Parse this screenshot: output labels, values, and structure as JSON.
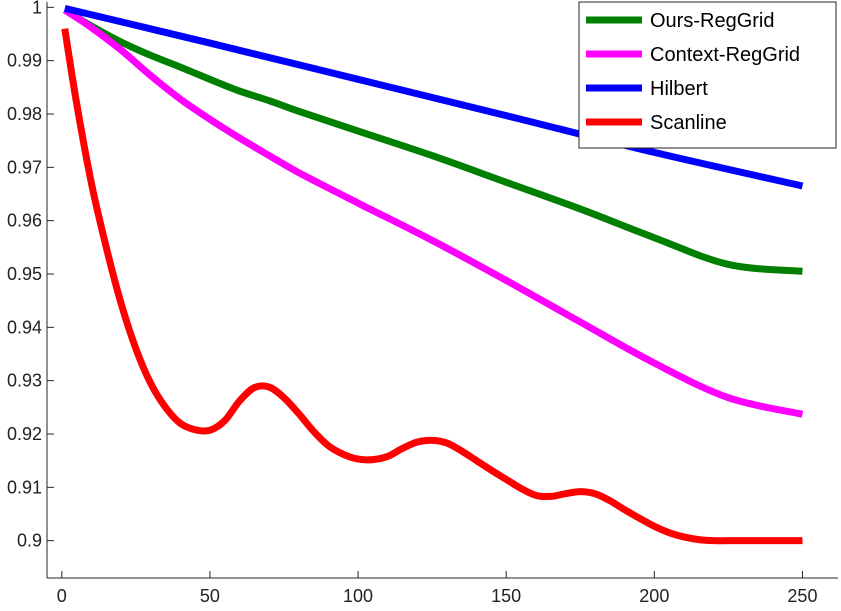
{
  "chart_data": {
    "type": "line",
    "title": "",
    "xlabel": "",
    "ylabel": "",
    "xlim": [
      -5,
      262
    ],
    "ylim": [
      0.893,
      1.001
    ],
    "xticks": [
      0,
      50,
      100,
      150,
      200,
      250
    ],
    "yticks": [
      0.9,
      0.91,
      0.92,
      0.93,
      0.94,
      0.95,
      0.96,
      0.97,
      0.98,
      0.99,
      1
    ],
    "ytick_labels": [
      "0.9",
      "0.91",
      "0.92",
      "0.93",
      "0.94",
      "0.95",
      "0.96",
      "0.97",
      "0.98",
      "0.99",
      "1"
    ],
    "grid": false,
    "legend_position": "top-right",
    "series": [
      {
        "name": "Ours-RegGrid",
        "color": "#007f00",
        "x": [
          1,
          10,
          20,
          30,
          40,
          50,
          60,
          70,
          80,
          100,
          125,
          150,
          175,
          200,
          225,
          250
        ],
        "y": [
          0.9995,
          0.9965,
          0.9935,
          0.991,
          0.9888,
          0.9865,
          0.9843,
          0.9825,
          0.9805,
          0.9768,
          0.9722,
          0.9672,
          0.9622,
          0.9568,
          0.9518,
          0.9505
        ]
      },
      {
        "name": "Context-RegGrid",
        "color": "#ff00ff",
        "x": [
          1,
          10,
          20,
          30,
          40,
          50,
          60,
          70,
          80,
          100,
          125,
          150,
          175,
          200,
          225,
          250
        ],
        "y": [
          0.9995,
          0.9962,
          0.992,
          0.9872,
          0.9828,
          0.979,
          0.9755,
          0.9722,
          0.969,
          0.9633,
          0.9563,
          0.9488,
          0.941,
          0.9333,
          0.9268,
          0.9237
        ]
      },
      {
        "name": "Hilbert",
        "color": "#0000ff",
        "x": [
          1,
          50,
          100,
          150,
          200,
          250
        ],
        "y": [
          0.9998,
          0.9933,
          0.9865,
          0.9797,
          0.9728,
          0.9665
        ]
      },
      {
        "name": "Scanline",
        "color": "#ff0000",
        "x": [
          1,
          5,
          10,
          15,
          20,
          25,
          30,
          35,
          40,
          45,
          50,
          55,
          60,
          65,
          70,
          75,
          80,
          85,
          90,
          95,
          100,
          105,
          110,
          115,
          120,
          125,
          130,
          135,
          140,
          145,
          150,
          155,
          160,
          165,
          170,
          175,
          180,
          185,
          190,
          195,
          200,
          205,
          210,
          215,
          220,
          225,
          230,
          235,
          240,
          245,
          250
        ],
        "y": [
          0.996,
          0.982,
          0.967,
          0.955,
          0.9445,
          0.936,
          0.9295,
          0.925,
          0.922,
          0.9208,
          0.9207,
          0.9225,
          0.9262,
          0.9287,
          0.9288,
          0.9268,
          0.9238,
          0.9205,
          0.9178,
          0.9162,
          0.9153,
          0.9152,
          0.9158,
          0.9173,
          0.9185,
          0.9188,
          0.9183,
          0.9168,
          0.915,
          0.9132,
          0.9115,
          0.9098,
          0.9085,
          0.9083,
          0.9088,
          0.9092,
          0.9088,
          0.9075,
          0.9058,
          0.9042,
          0.9027,
          0.9015,
          0.9007,
          0.9002,
          0.9,
          0.9,
          0.9,
          0.9,
          0.9,
          0.9,
          0.9
        ]
      }
    ]
  }
}
